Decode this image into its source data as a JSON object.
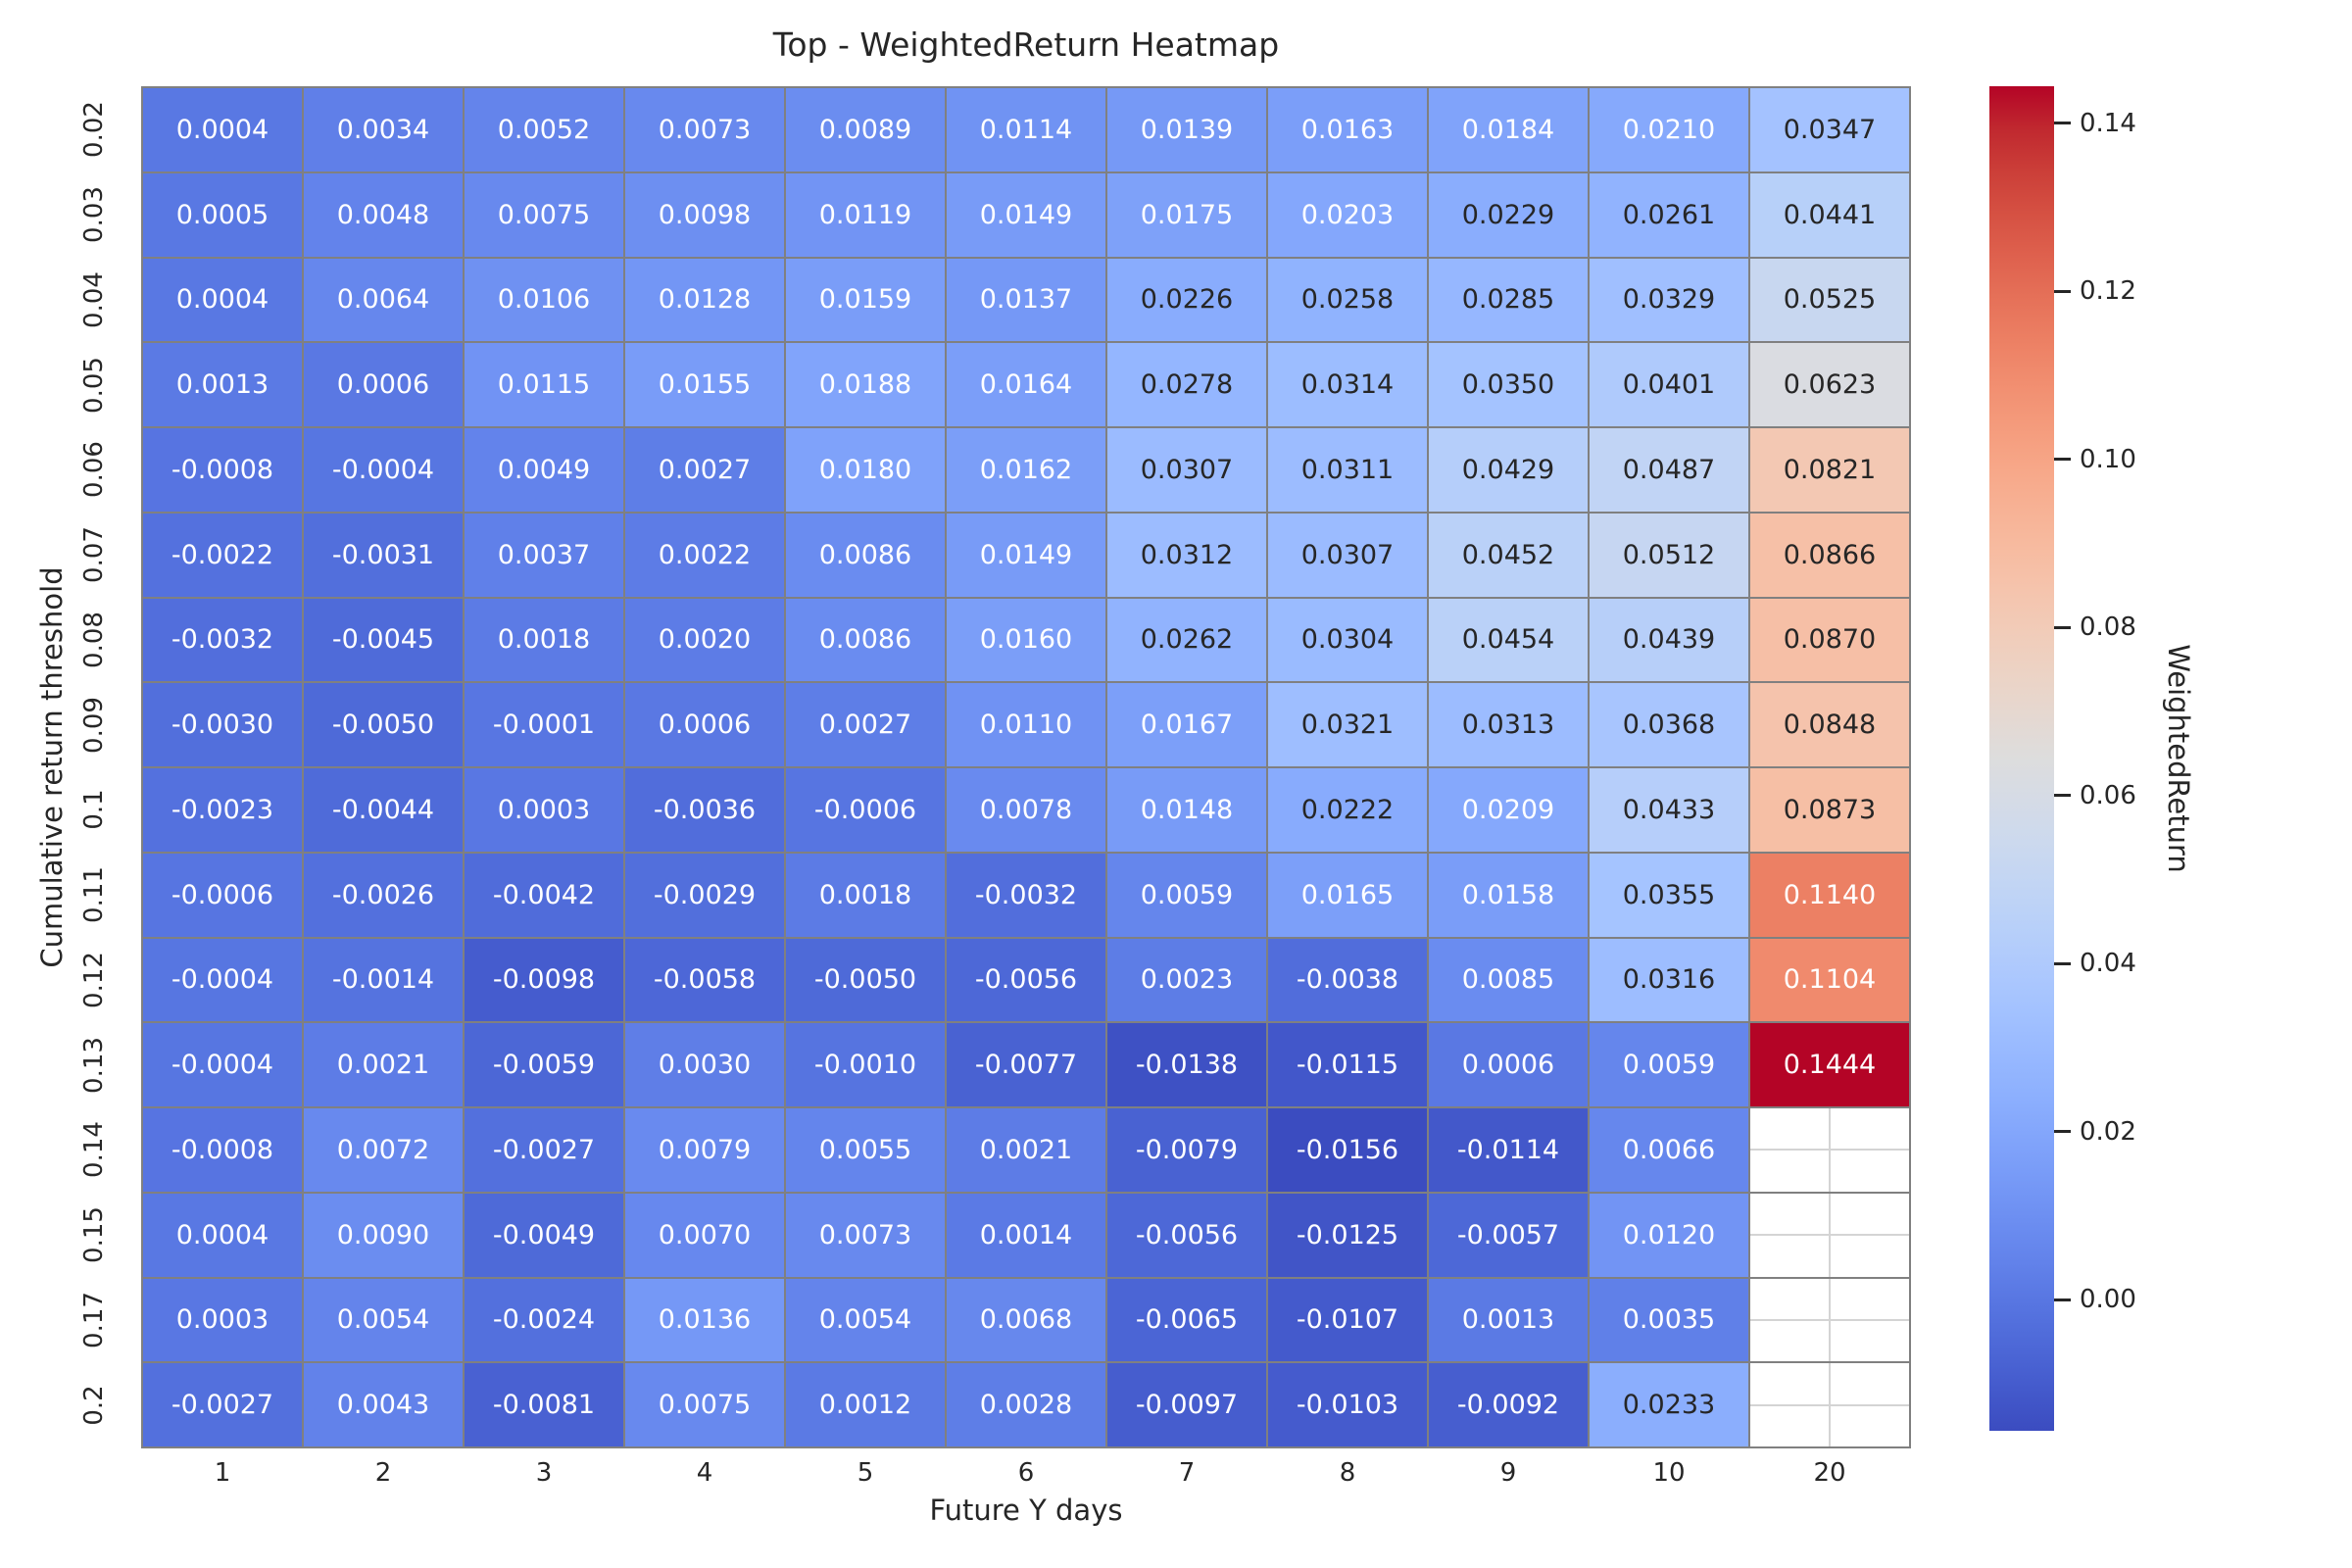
{
  "figure": {
    "title": "Top - WeightedReturn Heatmap",
    "xlabel": "Future Y days",
    "ylabel": "Cumulative return threshold",
    "colorbar_label": "WeightedReturn"
  },
  "chart_data": {
    "type": "heatmap",
    "title": "Top - WeightedReturn Heatmap",
    "xlabel": "Future Y days",
    "ylabel": "Cumulative return threshold",
    "x_categories": [
      "1",
      "2",
      "3",
      "4",
      "5",
      "6",
      "7",
      "8",
      "9",
      "10",
      "20"
    ],
    "y_categories": [
      "0.02",
      "0.03",
      "0.04",
      "0.05",
      "0.06",
      "0.07",
      "0.08",
      "0.09",
      "0.1",
      "0.11",
      "0.12",
      "0.13",
      "0.14",
      "0.15",
      "0.17",
      "0.2"
    ],
    "values": [
      [
        0.0004,
        0.0034,
        0.0052,
        0.0073,
        0.0089,
        0.0114,
        0.0139,
        0.0163,
        0.0184,
        0.021,
        0.0347
      ],
      [
        0.0005,
        0.0048,
        0.0075,
        0.0098,
        0.0119,
        0.0149,
        0.0175,
        0.0203,
        0.0229,
        0.0261,
        0.0441
      ],
      [
        0.0004,
        0.0064,
        0.0106,
        0.0128,
        0.0159,
        0.0137,
        0.0226,
        0.0258,
        0.0285,
        0.0329,
        0.0525
      ],
      [
        0.0013,
        0.0006,
        0.0115,
        0.0155,
        0.0188,
        0.0164,
        0.0278,
        0.0314,
        0.035,
        0.0401,
        0.0623
      ],
      [
        -0.0008,
        -0.0004,
        0.0049,
        0.0027,
        0.018,
        0.0162,
        0.0307,
        0.0311,
        0.0429,
        0.0487,
        0.0821
      ],
      [
        -0.0022,
        -0.0031,
        0.0037,
        0.0022,
        0.0086,
        0.0149,
        0.0312,
        0.0307,
        0.0452,
        0.0512,
        0.0866
      ],
      [
        -0.0032,
        -0.0045,
        0.0018,
        0.002,
        0.0086,
        0.016,
        0.0262,
        0.0304,
        0.0454,
        0.0439,
        0.087
      ],
      [
        -0.003,
        -0.005,
        -0.0001,
        0.0006,
        0.0027,
        0.011,
        0.0167,
        0.0321,
        0.0313,
        0.0368,
        0.0848
      ],
      [
        -0.0023,
        -0.0044,
        0.0003,
        -0.0036,
        -0.0006,
        0.0078,
        0.0148,
        0.0222,
        0.0209,
        0.0433,
        0.0873
      ],
      [
        -0.0006,
        -0.0026,
        -0.0042,
        -0.0029,
        0.0018,
        -0.0032,
        0.0059,
        0.0165,
        0.0158,
        0.0355,
        0.114
      ],
      [
        -0.0004,
        -0.0014,
        -0.0098,
        -0.0058,
        -0.005,
        -0.0056,
        0.0023,
        -0.0038,
        0.0085,
        0.0316,
        0.1104
      ],
      [
        -0.0004,
        0.0021,
        -0.0059,
        0.003,
        -0.001,
        -0.0077,
        -0.0138,
        -0.0115,
        0.0006,
        0.0059,
        0.1444
      ],
      [
        -0.0008,
        0.0072,
        -0.0027,
        0.0079,
        0.0055,
        0.0021,
        -0.0079,
        -0.0156,
        -0.0114,
        0.0066,
        null
      ],
      [
        0.0004,
        0.009,
        -0.0049,
        0.007,
        0.0073,
        0.0014,
        -0.0056,
        -0.0125,
        -0.0057,
        0.012,
        null
      ],
      [
        0.0003,
        0.0054,
        -0.0024,
        0.0136,
        0.0054,
        0.0068,
        -0.0065,
        -0.0107,
        0.0013,
        0.0035,
        null
      ],
      [
        -0.0027,
        0.0043,
        -0.0081,
        0.0075,
        0.0012,
        0.0028,
        -0.0097,
        -0.0103,
        -0.0092,
        0.0233,
        null
      ]
    ],
    "value_decimals": 4,
    "colormap": "coolwarm",
    "vmin": -0.0156,
    "vmax": 0.1444,
    "grid_on": true,
    "colorbar": {
      "label": "WeightedReturn",
      "tick_values": [
        0.14,
        0.12,
        0.1,
        0.08,
        0.06,
        0.04,
        0.02,
        0.0
      ],
      "tick_labels": [
        "0.14",
        "0.12",
        "0.10",
        "0.08",
        "0.06",
        "0.04",
        "0.02",
        "0.00"
      ]
    },
    "colors": {
      "cell_grid_line": "#808080",
      "nan_cell_grid_line": "#d4d4d4",
      "annotation_dark_text": "#262626",
      "annotation_light_text": "#ffffff",
      "background": "#ffffff",
      "colormap_min": "#3b4cc0",
      "colormap_mid": "#dddddd",
      "colormap_max": "#b40426"
    }
  }
}
